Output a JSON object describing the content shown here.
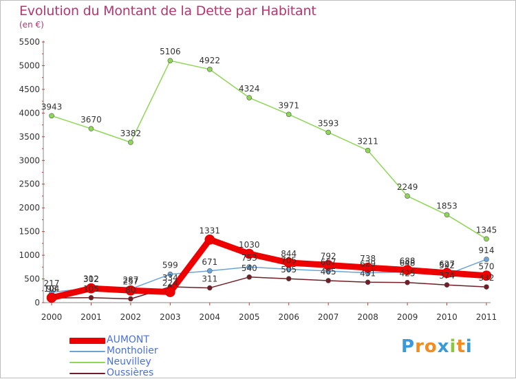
{
  "header": {
    "title": "Evolution du Montant de la Dette par Habitant",
    "unit": "(en €)"
  },
  "logo": {
    "text": "Proxiti",
    "letters": [
      "P",
      "r",
      "o",
      "x",
      "i",
      "t",
      "i"
    ],
    "colors": [
      "#3a9ad9",
      "#f28c1e",
      "#f28c1e",
      "#3a9ad9",
      "#8cc63f",
      "#f28c1e",
      "#3a9ad9"
    ]
  },
  "chart_data": {
    "type": "line",
    "title": "Evolution du Montant de la Dette par Habitant",
    "subtitle": "(en €)",
    "x": [
      "2000",
      "2001",
      "2002",
      "2003",
      "2004",
      "2005",
      "2006",
      "2007",
      "2008",
      "2009",
      "2010",
      "2011"
    ],
    "ylim": [
      0,
      5500
    ],
    "yticks": [
      0,
      500,
      1000,
      1500,
      2000,
      2500,
      3000,
      3500,
      4000,
      4500,
      5000,
      5500
    ],
    "grid": false,
    "legend_position": "bottom-left",
    "series": [
      {
        "name": "AUMONT",
        "color": "#ee0000",
        "width": 9,
        "values": [
          104,
          302,
          257,
          224,
          1331,
          1030,
          844,
          792,
          738,
          688,
          627,
          570
        ]
      },
      {
        "name": "Montholier",
        "color": "#6aa3d8",
        "width": 1.5,
        "values": [
          217,
          312,
          287,
          599,
          671,
          753,
          705,
          667,
          629,
          648,
          592,
          914
        ]
      },
      {
        "name": "Neuvilley",
        "color": "#8ed655",
        "width": 1.5,
        "values": [
          3943,
          3670,
          3382,
          5106,
          4922,
          4324,
          3971,
          3593,
          3211,
          2249,
          1853,
          1345
        ]
      },
      {
        "name": "Oussières",
        "color": "#6e1e24",
        "width": 1.5,
        "values": [
          98,
          105,
          80,
          334,
          311,
          540,
          505,
          465,
          431,
          425,
          374,
          332
        ]
      }
    ]
  }
}
